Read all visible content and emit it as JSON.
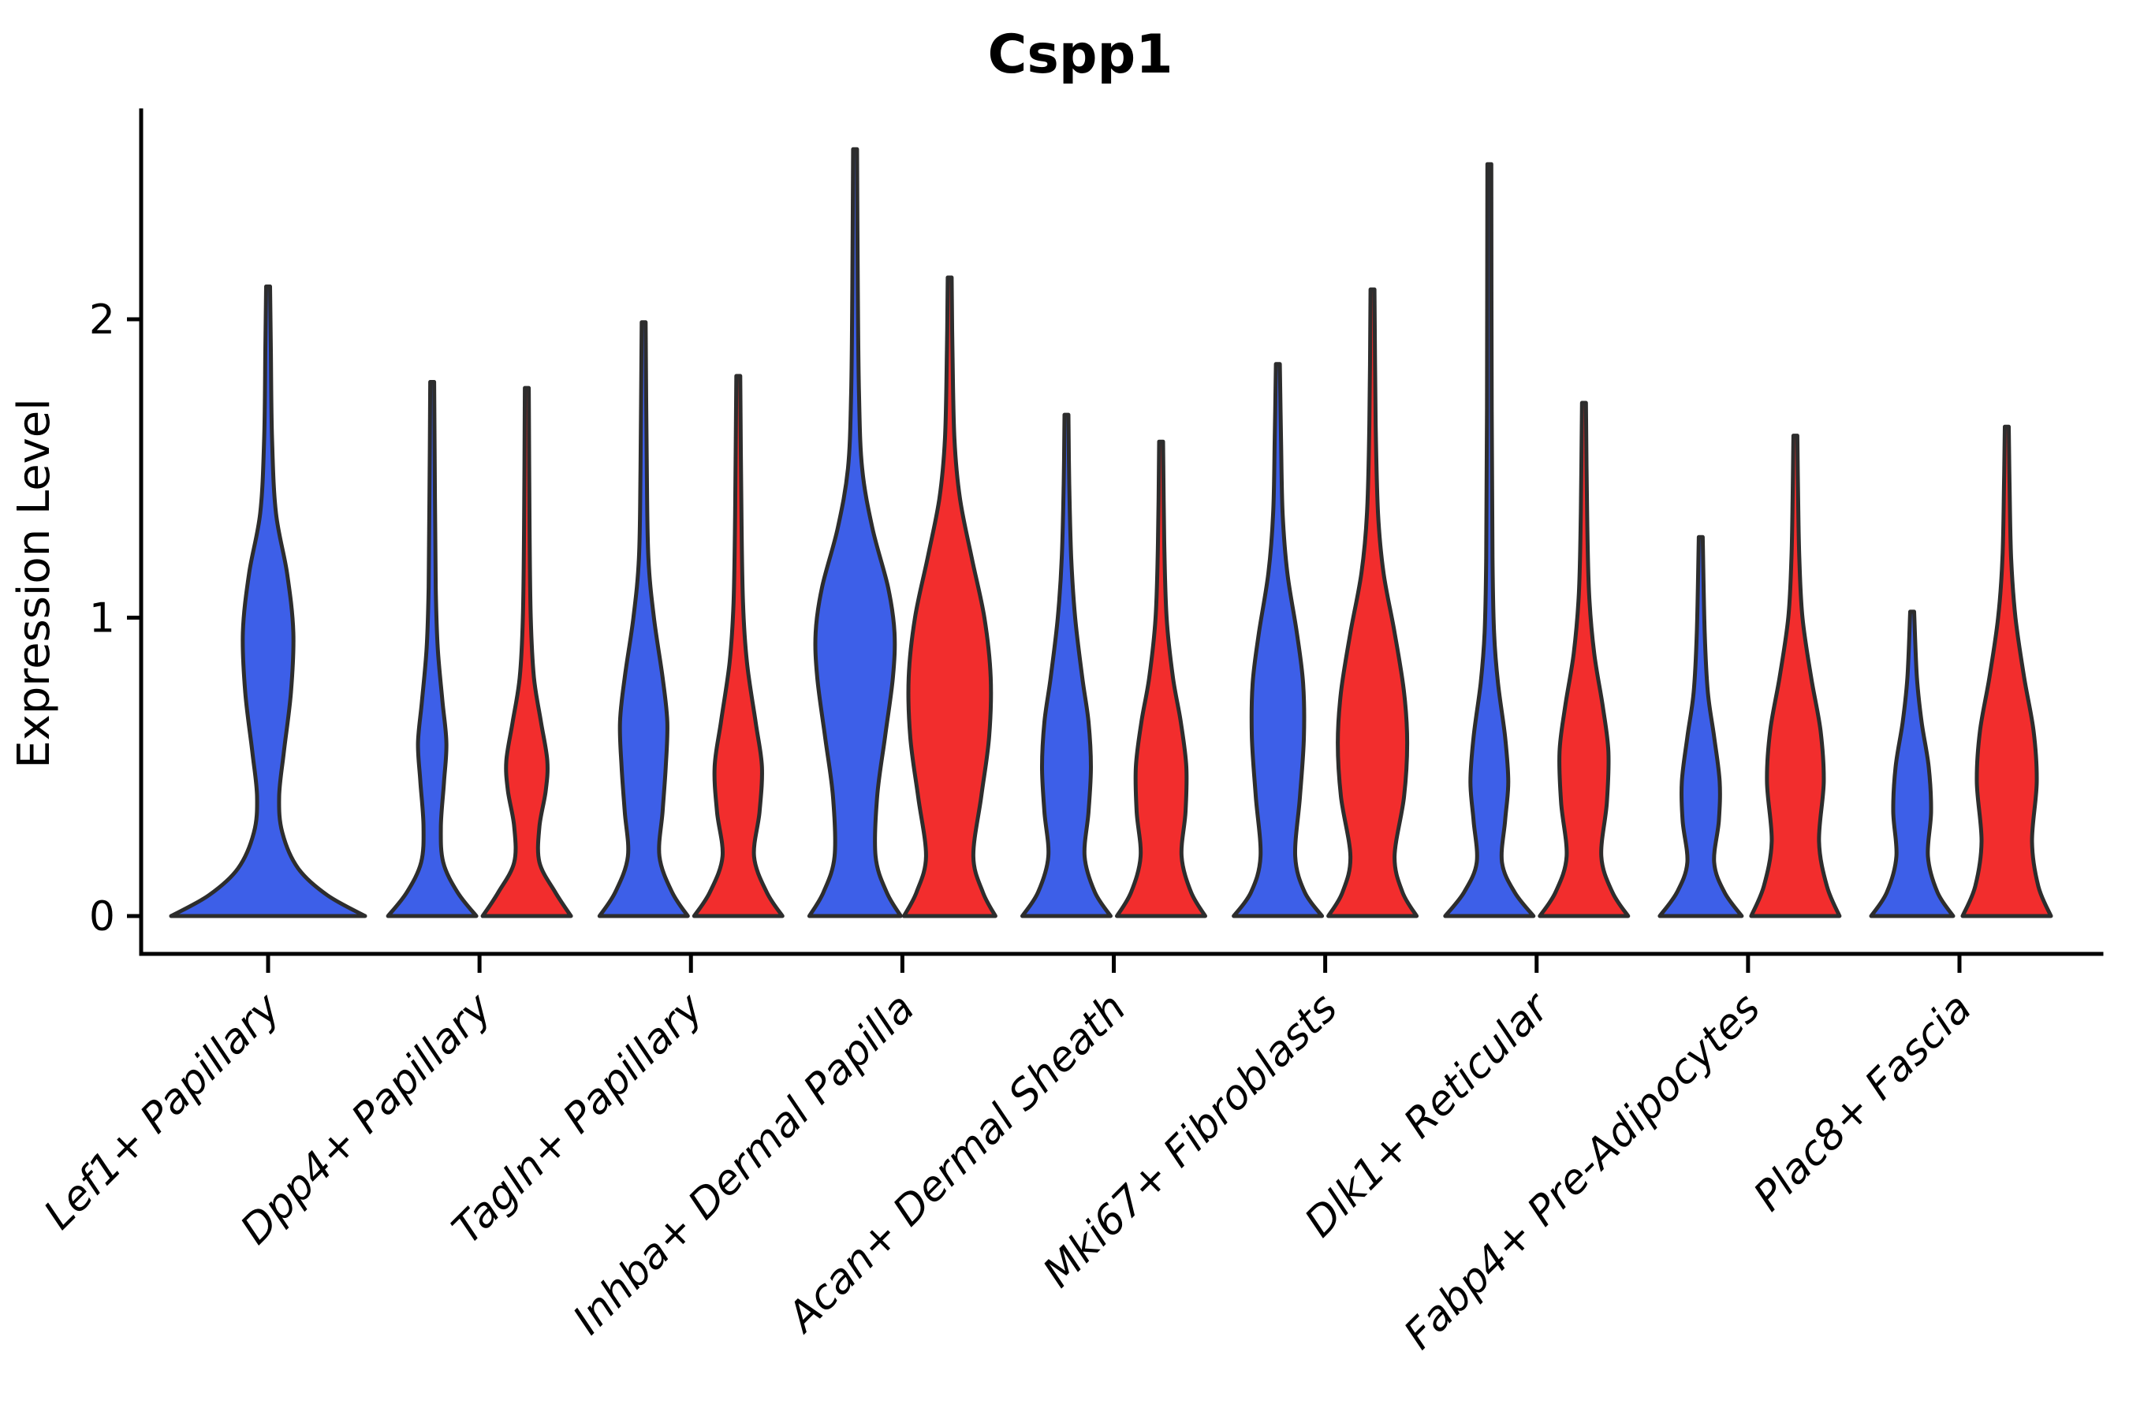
{
  "title": "Cspp1",
  "ylabel": "Expression Level",
  "colors": {
    "blue_fill": "#3D5FE8",
    "red_fill": "#F22D2D",
    "violin_outline": "#2D2D2D",
    "axis": "#000000",
    "background": "#FFFFFF"
  },
  "chart_data": {
    "type": "violin",
    "title": "Cspp1",
    "xlabel": "",
    "ylabel": "Expression Level",
    "yticks": [
      0,
      1,
      2
    ],
    "ylim": [
      0,
      2.7
    ],
    "grid": false,
    "legend": "none",
    "categories": [
      "Lef1+ Papillary",
      "Dpp4+ Papillary",
      "Tagln+ Papillary",
      "Inhba+ Dermal Papilla",
      "Acan+ Dermal Sheath",
      "Mki67+ Fibroblasts",
      "Dlk1+ Reticular",
      "Fabp4+ Pre-Adipocytes",
      "Plac8+ Fascia"
    ],
    "series": [
      {
        "name": "blue",
        "color": "#3D5FE8",
        "max_expression": [
          2.11,
          1.79,
          1.99,
          2.57,
          1.68,
          1.85,
          2.52,
          1.27,
          1.02
        ]
      },
      {
        "name": "red",
        "color": "#F22D2D",
        "max_expression": [
          null,
          1.77,
          1.81,
          2.14,
          1.59,
          2.1,
          1.72,
          1.61,
          1.64
        ]
      }
    ],
    "violins": [
      {
        "group": 0,
        "side": "center",
        "series": "blue",
        "tip": 2.11,
        "profile": [
          [
            0,
            123
          ],
          [
            0.07,
            75
          ],
          [
            0.16,
            38
          ],
          [
            0.28,
            18
          ],
          [
            0.4,
            14
          ],
          [
            0.55,
            20
          ],
          [
            0.75,
            29
          ],
          [
            0.95,
            32
          ],
          [
            1.15,
            24
          ],
          [
            1.35,
            10
          ],
          [
            1.6,
            5
          ],
          [
            1.9,
            3.5
          ],
          [
            2.11,
            2.5
          ]
        ]
      },
      {
        "group": 1,
        "side": "left",
        "series": "blue",
        "tip": 1.79,
        "profile": [
          [
            0,
            56
          ],
          [
            0.08,
            32
          ],
          [
            0.18,
            14
          ],
          [
            0.3,
            11
          ],
          [
            0.45,
            15
          ],
          [
            0.58,
            18
          ],
          [
            0.72,
            13
          ],
          [
            0.9,
            7
          ],
          [
            1.1,
            4.5
          ],
          [
            1.4,
            3.5
          ],
          [
            1.79,
            2.5
          ]
        ]
      },
      {
        "group": 1,
        "side": "right",
        "series": "red",
        "tip": 1.77,
        "profile": [
          [
            0,
            56
          ],
          [
            0.08,
            36
          ],
          [
            0.18,
            16
          ],
          [
            0.3,
            16
          ],
          [
            0.42,
            24
          ],
          [
            0.52,
            26
          ],
          [
            0.65,
            18
          ],
          [
            0.8,
            9
          ],
          [
            1.0,
            5
          ],
          [
            1.3,
            3.5
          ],
          [
            1.77,
            2.5
          ]
        ]
      },
      {
        "group": 2,
        "side": "left",
        "series": "blue",
        "tip": 1.99,
        "profile": [
          [
            0,
            56
          ],
          [
            0.08,
            36
          ],
          [
            0.2,
            20
          ],
          [
            0.35,
            24
          ],
          [
            0.5,
            28
          ],
          [
            0.65,
            30
          ],
          [
            0.8,
            24
          ],
          [
            1.0,
            13
          ],
          [
            1.2,
            6
          ],
          [
            1.5,
            4
          ],
          [
            1.99,
            2.5
          ]
        ]
      },
      {
        "group": 2,
        "side": "right",
        "series": "red",
        "tip": 1.81,
        "profile": [
          [
            0,
            56
          ],
          [
            0.08,
            36
          ],
          [
            0.2,
            20
          ],
          [
            0.35,
            27
          ],
          [
            0.5,
            30
          ],
          [
            0.65,
            22
          ],
          [
            0.85,
            11
          ],
          [
            1.05,
            6
          ],
          [
            1.35,
            4
          ],
          [
            1.81,
            2.5
          ]
        ]
      },
      {
        "group": 3,
        "side": "left",
        "series": "blue",
        "tip": 2.57,
        "profile": [
          [
            0,
            58
          ],
          [
            0.08,
            40
          ],
          [
            0.2,
            26
          ],
          [
            0.4,
            28
          ],
          [
            0.6,
            38
          ],
          [
            0.8,
            48
          ],
          [
            0.95,
            50
          ],
          [
            1.1,
            42
          ],
          [
            1.3,
            22
          ],
          [
            1.5,
            9
          ],
          [
            1.75,
            5
          ],
          [
            2.1,
            3.5
          ],
          [
            2.57,
            2.5
          ]
        ]
      },
      {
        "group": 3,
        "side": "right",
        "series": "red",
        "tip": 2.14,
        "profile": [
          [
            0,
            58
          ],
          [
            0.08,
            42
          ],
          [
            0.2,
            30
          ],
          [
            0.4,
            40
          ],
          [
            0.6,
            50
          ],
          [
            0.8,
            52
          ],
          [
            1.0,
            44
          ],
          [
            1.2,
            28
          ],
          [
            1.4,
            13
          ],
          [
            1.6,
            6
          ],
          [
            1.9,
            3.5
          ],
          [
            2.14,
            2.5
          ]
        ]
      },
      {
        "group": 4,
        "side": "left",
        "series": "blue",
        "tip": 1.68,
        "profile": [
          [
            0,
            56
          ],
          [
            0.08,
            36
          ],
          [
            0.2,
            23
          ],
          [
            0.35,
            28
          ],
          [
            0.5,
            31
          ],
          [
            0.65,
            28
          ],
          [
            0.8,
            20
          ],
          [
            1.0,
            11
          ],
          [
            1.2,
            6
          ],
          [
            1.45,
            3.5
          ],
          [
            1.68,
            2.5
          ]
        ]
      },
      {
        "group": 4,
        "side": "right",
        "series": "red",
        "tip": 1.59,
        "profile": [
          [
            0,
            56
          ],
          [
            0.08,
            38
          ],
          [
            0.2,
            26
          ],
          [
            0.35,
            31
          ],
          [
            0.5,
            32
          ],
          [
            0.65,
            25
          ],
          [
            0.8,
            15
          ],
          [
            1.0,
            7
          ],
          [
            1.25,
            4
          ],
          [
            1.59,
            2.5
          ]
        ]
      },
      {
        "group": 5,
        "side": "left",
        "series": "blue",
        "tip": 1.85,
        "profile": [
          [
            0,
            56
          ],
          [
            0.08,
            34
          ],
          [
            0.2,
            22
          ],
          [
            0.4,
            28
          ],
          [
            0.6,
            33
          ],
          [
            0.78,
            32
          ],
          [
            0.95,
            24
          ],
          [
            1.15,
            12
          ],
          [
            1.35,
            6
          ],
          [
            1.6,
            4
          ],
          [
            1.85,
            2.5
          ]
        ]
      },
      {
        "group": 5,
        "side": "right",
        "series": "red",
        "tip": 2.1,
        "profile": [
          [
            0,
            56
          ],
          [
            0.08,
            38
          ],
          [
            0.2,
            28
          ],
          [
            0.4,
            40
          ],
          [
            0.58,
            44
          ],
          [
            0.75,
            40
          ],
          [
            0.95,
            28
          ],
          [
            1.15,
            14
          ],
          [
            1.35,
            7
          ],
          [
            1.65,
            4
          ],
          [
            2.1,
            2.5
          ]
        ]
      },
      {
        "group": 6,
        "side": "left",
        "series": "blue",
        "tip": 2.52,
        "profile": [
          [
            0,
            56
          ],
          [
            0.08,
            32
          ],
          [
            0.18,
            16
          ],
          [
            0.32,
            20
          ],
          [
            0.45,
            24
          ],
          [
            0.6,
            20
          ],
          [
            0.78,
            11
          ],
          [
            0.95,
            6
          ],
          [
            1.2,
            4
          ],
          [
            1.7,
            3
          ],
          [
            2.52,
            2.5
          ]
        ]
      },
      {
        "group": 6,
        "side": "right",
        "series": "red",
        "tip": 1.72,
        "profile": [
          [
            0,
            56
          ],
          [
            0.08,
            36
          ],
          [
            0.2,
            22
          ],
          [
            0.38,
            29
          ],
          [
            0.55,
            31
          ],
          [
            0.7,
            24
          ],
          [
            0.88,
            13
          ],
          [
            1.08,
            6.5
          ],
          [
            1.35,
            4
          ],
          [
            1.72,
            2.5
          ]
        ]
      },
      {
        "group": 7,
        "side": "left",
        "series": "blue",
        "tip": 1.27,
        "profile": [
          [
            0,
            52
          ],
          [
            0.08,
            30
          ],
          [
            0.18,
            17
          ],
          [
            0.32,
            23
          ],
          [
            0.45,
            24
          ],
          [
            0.6,
            17
          ],
          [
            0.75,
            9
          ],
          [
            0.95,
            5
          ],
          [
            1.27,
            2.5
          ]
        ]
      },
      {
        "group": 7,
        "side": "right",
        "series": "red",
        "tip": 1.61,
        "profile": [
          [
            0,
            56
          ],
          [
            0.1,
            40
          ],
          [
            0.25,
            30
          ],
          [
            0.45,
            36
          ],
          [
            0.62,
            32
          ],
          [
            0.8,
            20
          ],
          [
            1.0,
            9
          ],
          [
            1.2,
            5
          ],
          [
            1.4,
            3.5
          ],
          [
            1.61,
            2.5
          ]
        ]
      },
      {
        "group": 8,
        "side": "left",
        "series": "blue",
        "tip": 1.02,
        "profile": [
          [
            0,
            52
          ],
          [
            0.08,
            32
          ],
          [
            0.2,
            20
          ],
          [
            0.35,
            24
          ],
          [
            0.5,
            21
          ],
          [
            0.65,
            12
          ],
          [
            0.8,
            6
          ],
          [
            1.02,
            2.5
          ]
        ]
      },
      {
        "group": 8,
        "side": "right",
        "series": "red",
        "tip": 1.64,
        "profile": [
          [
            0,
            56
          ],
          [
            0.1,
            40
          ],
          [
            0.25,
            32
          ],
          [
            0.45,
            38
          ],
          [
            0.62,
            34
          ],
          [
            0.8,
            22
          ],
          [
            1.0,
            11
          ],
          [
            1.2,
            5.5
          ],
          [
            1.45,
            3.5
          ],
          [
            1.64,
            2.5
          ]
        ]
      }
    ]
  }
}
